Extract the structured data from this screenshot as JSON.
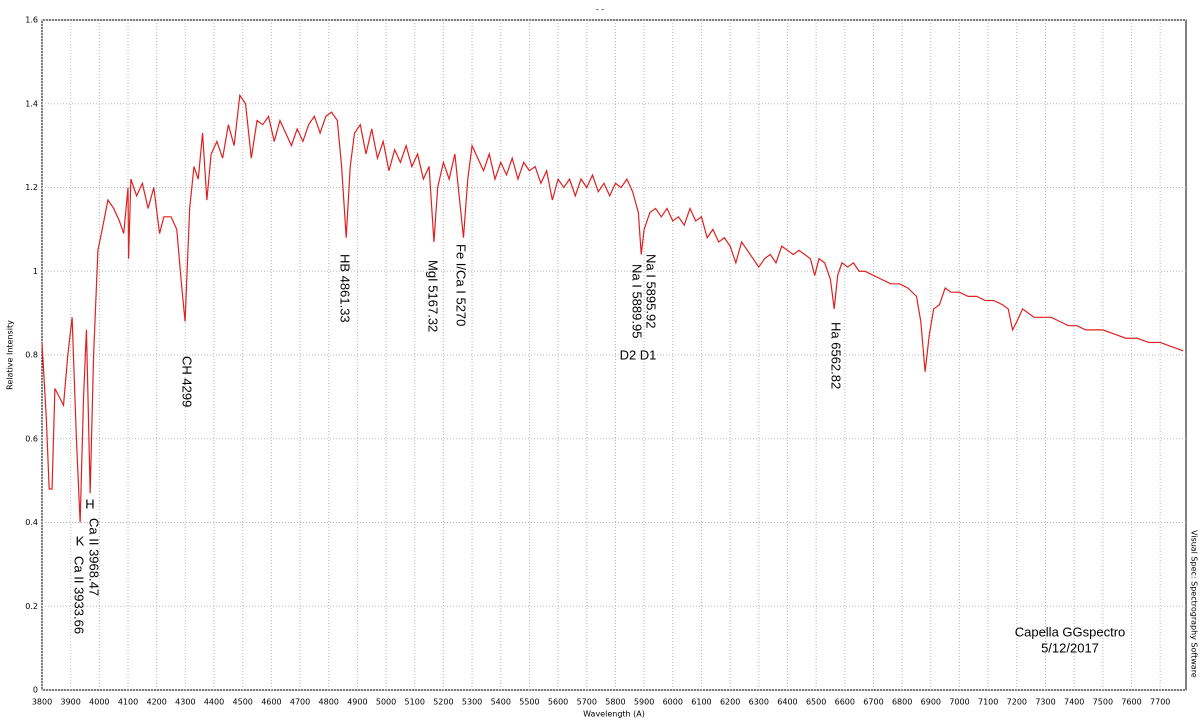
{
  "chart_data": {
    "type": "line",
    "title": "- -",
    "x_label": "Wavelength (A)",
    "y_label": "Relative Intensity",
    "side_text": "Visual Spec: Spectrography Software",
    "annotations": [
      "H",
      "Ca II 3968.47",
      "K",
      "Ca II 3933.66",
      "CH 4299",
      "HB 4861.33",
      "MgI 5167.32",
      "Fe I/Ca I 5270",
      "Na I 5895.92",
      "Na I 5889.95",
      "D2 D1",
      "Ha 6562.82",
      "Capella GGspectro",
      "5/12/2017"
    ],
    "grid": true,
    "xlim": [
      3800,
      7790
    ],
    "ylim": [
      0,
      1.6
    ],
    "xticks": [
      3800,
      3900,
      4000,
      4100,
      4200,
      4300,
      4400,
      4500,
      4600,
      4700,
      4800,
      4900,
      5000,
      5100,
      5200,
      5300,
      5400,
      5500,
      5600,
      5700,
      5800,
      5900,
      6000,
      6100,
      6200,
      6300,
      6400,
      6500,
      6600,
      6700,
      6800,
      6900,
      7000,
      7100,
      7200,
      7300,
      7400,
      7500,
      7600,
      7700
    ],
    "yticks": [
      0,
      0.2,
      0.4,
      0.6,
      0.8,
      1,
      1.2,
      1.4,
      1.6
    ],
    "series": [
      {
        "color": "#e02020",
        "x": [
          3800,
          3815,
          3825,
          3835,
          3845,
          3860,
          3875,
          3890,
          3905,
          3920,
          3933,
          3945,
          3955,
          3968,
          3980,
          3995,
          4010,
          4030,
          4050,
          4070,
          4085,
          4100,
          4102,
          4110,
          4130,
          4150,
          4170,
          4190,
          4210,
          4225,
          4250,
          4270,
          4285,
          4299,
          4315,
          4330,
          4345,
          4360,
          4375,
          4390,
          4410,
          4430,
          4450,
          4470,
          4490,
          4510,
          4530,
          4550,
          4570,
          4590,
          4610,
          4630,
          4650,
          4670,
          4690,
          4710,
          4730,
          4750,
          4770,
          4790,
          4810,
          4830,
          4845,
          4861,
          4875,
          4890,
          4910,
          4930,
          4950,
          4970,
          4990,
          5010,
          5030,
          5050,
          5070,
          5090,
          5110,
          5130,
          5150,
          5167,
          5180,
          5200,
          5220,
          5240,
          5255,
          5270,
          5285,
          5300,
          5320,
          5340,
          5360,
          5380,
          5400,
          5420,
          5440,
          5460,
          5480,
          5500,
          5520,
          5540,
          5560,
          5580,
          5600,
          5620,
          5640,
          5660,
          5680,
          5700,
          5720,
          5740,
          5760,
          5780,
          5800,
          5820,
          5840,
          5860,
          5880,
          5890,
          5900,
          5920,
          5940,
          5960,
          5980,
          6000,
          6020,
          6040,
          6060,
          6080,
          6100,
          6120,
          6140,
          6160,
          6180,
          6200,
          6220,
          6240,
          6260,
          6280,
          6300,
          6320,
          6340,
          6360,
          6380,
          6400,
          6420,
          6440,
          6460,
          6480,
          6495,
          6510,
          6530,
          6550,
          6563,
          6575,
          6590,
          6610,
          6630,
          6650,
          6670,
          6700,
          6730,
          6760,
          6790,
          6820,
          6850,
          6865,
          6880,
          6895,
          6910,
          6930,
          6950,
          6970,
          7000,
          7030,
          7060,
          7090,
          7120,
          7150,
          7170,
          7185,
          7200,
          7220,
          7240,
          7260,
          7290,
          7320,
          7350,
          7380,
          7410,
          7440,
          7470,
          7500,
          7540,
          7580,
          7620,
          7660,
          7700,
          7740,
          7780
        ],
        "values": [
          0.83,
          0.65,
          0.48,
          0.48,
          0.72,
          0.7,
          0.68,
          0.8,
          0.89,
          0.6,
          0.4,
          0.7,
          0.86,
          0.47,
          0.8,
          1.05,
          1.1,
          1.17,
          1.15,
          1.12,
          1.09,
          1.2,
          1.03,
          1.22,
          1.18,
          1.21,
          1.15,
          1.2,
          1.09,
          1.13,
          1.13,
          1.1,
          0.98,
          0.88,
          1.15,
          1.25,
          1.22,
          1.33,
          1.17,
          1.28,
          1.31,
          1.27,
          1.35,
          1.3,
          1.42,
          1.4,
          1.27,
          1.36,
          1.35,
          1.37,
          1.31,
          1.36,
          1.33,
          1.3,
          1.34,
          1.31,
          1.35,
          1.37,
          1.33,
          1.37,
          1.38,
          1.36,
          1.25,
          1.08,
          1.25,
          1.33,
          1.35,
          1.28,
          1.34,
          1.27,
          1.31,
          1.24,
          1.29,
          1.26,
          1.3,
          1.25,
          1.28,
          1.22,
          1.25,
          1.07,
          1.2,
          1.26,
          1.22,
          1.28,
          1.18,
          1.08,
          1.22,
          1.3,
          1.27,
          1.24,
          1.28,
          1.22,
          1.26,
          1.23,
          1.27,
          1.22,
          1.26,
          1.24,
          1.25,
          1.21,
          1.24,
          1.17,
          1.22,
          1.2,
          1.22,
          1.18,
          1.22,
          1.2,
          1.23,
          1.19,
          1.21,
          1.18,
          1.21,
          1.2,
          1.22,
          1.19,
          1.14,
          1.04,
          1.1,
          1.14,
          1.15,
          1.13,
          1.15,
          1.12,
          1.13,
          1.11,
          1.15,
          1.12,
          1.13,
          1.08,
          1.1,
          1.07,
          1.08,
          1.06,
          1.02,
          1.07,
          1.05,
          1.03,
          1.01,
          1.03,
          1.04,
          1.02,
          1.06,
          1.05,
          1.04,
          1.05,
          1.04,
          1.03,
          0.99,
          1.03,
          1.02,
          0.98,
          0.91,
          0.99,
          1.02,
          1.01,
          1.02,
          1.0,
          1.0,
          0.99,
          0.98,
          0.97,
          0.97,
          0.96,
          0.94,
          0.88,
          0.76,
          0.85,
          0.91,
          0.92,
          0.96,
          0.95,
          0.95,
          0.94,
          0.94,
          0.93,
          0.93,
          0.92,
          0.91,
          0.86,
          0.88,
          0.91,
          0.9,
          0.89,
          0.89,
          0.89,
          0.88,
          0.87,
          0.87,
          0.86,
          0.86,
          0.86,
          0.85,
          0.84,
          0.84,
          0.83,
          0.83,
          0.82,
          0.81
        ]
      }
    ]
  }
}
